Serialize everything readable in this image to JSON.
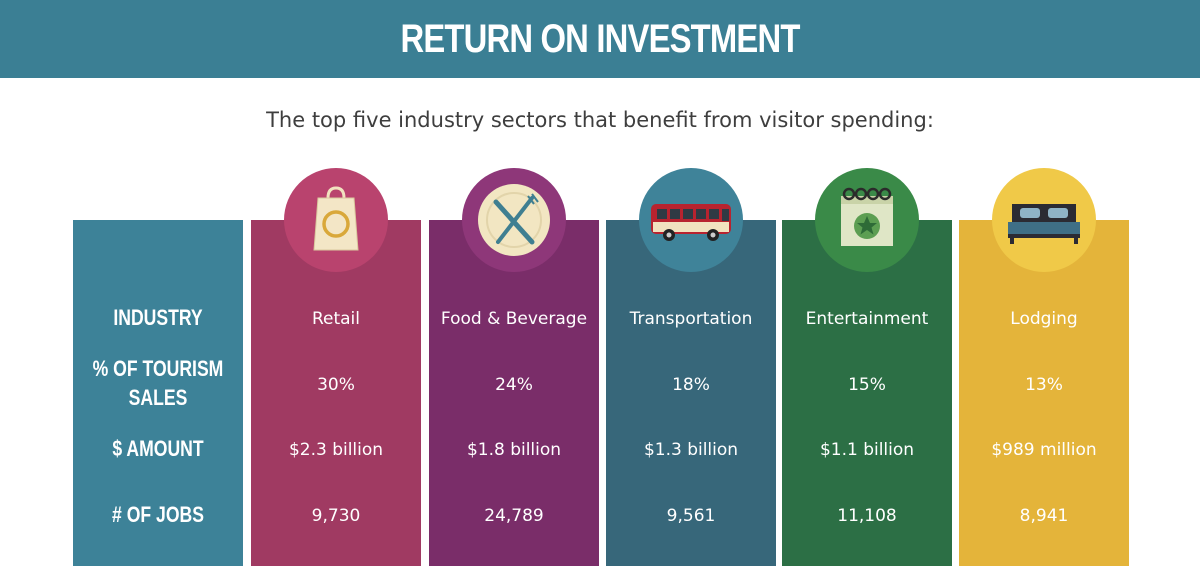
{
  "header": {
    "title": "RETURN ON INVESTMENT",
    "bg_color": "#3b7f94"
  },
  "subtitle": "The top five industry sectors that benefit from visitor spending:",
  "row_labels": {
    "industry": "INDUSTRY",
    "pct_line1": "% OF TOURISM",
    "pct_line2": "SALES",
    "amount": "$ AMOUNT",
    "jobs": "# OF JOBS",
    "bg_color": "#3d8298"
  },
  "sectors": [
    {
      "industry": "Retail",
      "pct": "30%",
      "amount": "$2.3 billion",
      "jobs": "9,730",
      "color": "#a03a62",
      "icon": "shopping-bag-icon"
    },
    {
      "industry": "Food & Beverage",
      "pct": "24%",
      "amount": "$1.8 billion",
      "jobs": "24,789",
      "color": "#7a2d69",
      "icon": "plate-fork-knife-icon"
    },
    {
      "industry": "Transportation",
      "pct": "18%",
      "amount": "$1.3 billion",
      "jobs": "9,561",
      "color": "#37677a",
      "icon": "bus-icon"
    },
    {
      "industry": "Entertainment",
      "pct": "15%",
      "amount": "$1.1 billion",
      "jobs": "11,108",
      "color": "#2c6f45",
      "icon": "calendar-star-icon"
    },
    {
      "industry": "Lodging",
      "pct": "13%",
      "amount": "$989 million",
      "jobs": "8,941",
      "color": "#e4b43a",
      "icon": "bed-icon"
    }
  ]
}
